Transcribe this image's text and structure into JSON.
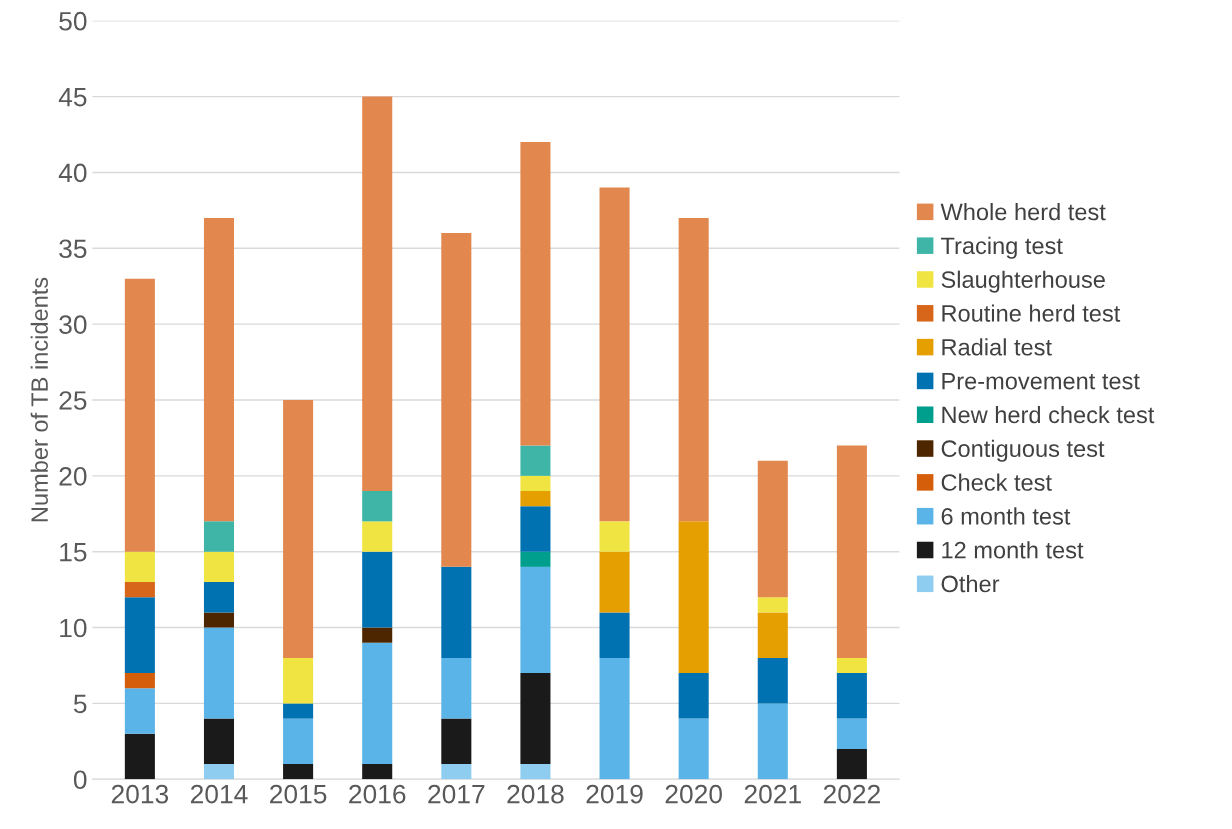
{
  "chart_data": {
    "type": "bar",
    "stacked": true,
    "ylabel": "Number of TB incidents",
    "categories": [
      "2013",
      "2014",
      "2015",
      "2016",
      "2017",
      "2018",
      "2019",
      "2020",
      "2021",
      "2022"
    ],
    "ylim": [
      0,
      50
    ],
    "yticks": [
      0,
      5,
      10,
      15,
      20,
      25,
      30,
      35,
      40,
      45,
      50
    ],
    "grid": "y",
    "legend": "right",
    "series": [
      {
        "name": "Other",
        "color": "#8fcdf0",
        "values": [
          null,
          1,
          null,
          null,
          1,
          1,
          null,
          null,
          null,
          null
        ]
      },
      {
        "name": "12 month test",
        "color": "#1a1a1a",
        "values": [
          3,
          3,
          1,
          1,
          3,
          6,
          null,
          null,
          null,
          2
        ]
      },
      {
        "name": "6 month test",
        "color": "#5ab4e8",
        "values": [
          3,
          6,
          3,
          8,
          4,
          7,
          8,
          4,
          5,
          2
        ]
      },
      {
        "name": "Check test",
        "color": "#d55e0a",
        "values": [
          1,
          null,
          null,
          null,
          null,
          null,
          null,
          null,
          null,
          null
        ]
      },
      {
        "name": "Contiguous test",
        "color": "#4d2600",
        "values": [
          null,
          1,
          null,
          1,
          null,
          null,
          null,
          null,
          null,
          null
        ]
      },
      {
        "name": "New herd check test",
        "color": "#009e8c",
        "values": [
          null,
          null,
          null,
          null,
          null,
          1,
          null,
          null,
          null,
          null
        ]
      },
      {
        "name": "Pre-movement test",
        "color": "#0072b2",
        "values": [
          5,
          2,
          1,
          5,
          6,
          3,
          3,
          3,
          3,
          3
        ]
      },
      {
        "name": "Radial test",
        "color": "#e69f00",
        "values": [
          null,
          null,
          null,
          null,
          null,
          1,
          4,
          10,
          3,
          null
        ]
      },
      {
        "name": "Routine herd test",
        "color": "#d8661a",
        "values": [
          1,
          null,
          null,
          null,
          null,
          null,
          null,
          null,
          null,
          null
        ]
      },
      {
        "name": "Slaughterhouse",
        "color": "#f0e442",
        "values": [
          2,
          2,
          3,
          2,
          null,
          1,
          2,
          null,
          1,
          1
        ]
      },
      {
        "name": "Tracing test",
        "color": "#3fb5a8",
        "values": [
          null,
          2,
          null,
          2,
          null,
          2,
          null,
          null,
          null,
          null
        ]
      },
      {
        "name": "Whole herd test",
        "color": "#e2884e",
        "values": [
          18,
          20,
          17,
          26,
          22,
          20,
          22,
          20,
          9,
          14
        ]
      }
    ]
  }
}
